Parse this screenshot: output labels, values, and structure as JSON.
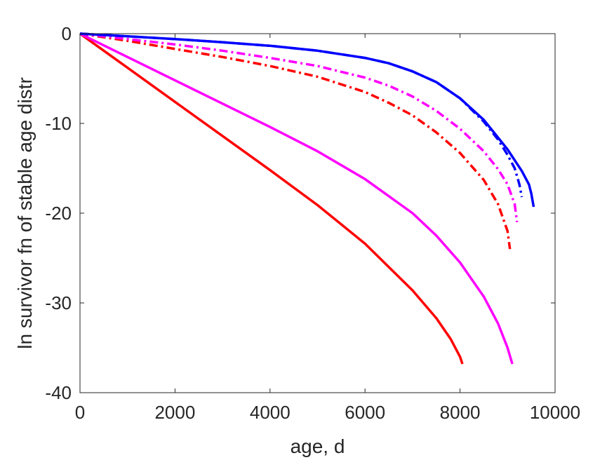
{
  "chart_data": {
    "type": "line",
    "title": "",
    "xlabel": "age, d",
    "ylabel": "ln survivor fn of stable age distr",
    "xlim": [
      0,
      10000
    ],
    "ylim": [
      -40,
      0
    ],
    "xticks": [
      0,
      2000,
      4000,
      6000,
      8000,
      10000
    ],
    "yticks": [
      0,
      -10,
      -20,
      -30,
      -40
    ],
    "xtick_labels": [
      "0",
      "2000",
      "4000",
      "6000",
      "8000",
      "10000"
    ],
    "ytick_labels": [
      "0",
      "-10",
      "-20",
      "-30",
      "-40"
    ],
    "grid": false,
    "legend": "none",
    "series": [
      {
        "color": "#ff0000",
        "style": "solid",
        "x": [
          0,
          1000,
          2000,
          3000,
          4000,
          5000,
          6000,
          7000,
          7500,
          7800,
          8000,
          8050
        ],
        "y": [
          0,
          -3.8,
          -7.6,
          -11.4,
          -15.2,
          -19.1,
          -23.4,
          -28.6,
          -31.7,
          -34.0,
          -36.0,
          -36.8
        ]
      },
      {
        "color": "#ff00ff",
        "style": "solid",
        "x": [
          0,
          1000,
          2000,
          3000,
          4000,
          5000,
          6000,
          7000,
          7500,
          8000,
          8500,
          8800,
          9000,
          9100
        ],
        "y": [
          0,
          -2.6,
          -5.2,
          -7.8,
          -10.4,
          -13.1,
          -16.2,
          -20.0,
          -22.5,
          -25.5,
          -29.3,
          -32.3,
          -35.0,
          -36.8
        ]
      },
      {
        "color": "#ff0000",
        "style": "dashdot",
        "x": [
          0,
          1000,
          2000,
          3000,
          4000,
          5000,
          6000,
          6500,
          7000,
          7500,
          8000,
          8500,
          8800,
          9000,
          9050
        ],
        "y": [
          0,
          -0.8,
          -1.7,
          -2.6,
          -3.6,
          -4.8,
          -6.5,
          -7.7,
          -9.1,
          -11.0,
          -13.3,
          -16.3,
          -19.0,
          -22.0,
          -24.0
        ]
      },
      {
        "color": "#ff00ff",
        "style": "dashdot",
        "x": [
          0,
          1000,
          2000,
          3000,
          4000,
          5000,
          6000,
          6500,
          7000,
          7500,
          8000,
          8500,
          8800,
          9000,
          9150,
          9200
        ],
        "y": [
          0,
          -0.6,
          -1.2,
          -1.9,
          -2.7,
          -3.6,
          -4.9,
          -5.8,
          -7.0,
          -8.6,
          -10.6,
          -13.1,
          -15.1,
          -16.8,
          -19.0,
          -21.0
        ]
      },
      {
        "color": "#0000ff",
        "style": "dashdot",
        "x": [
          0,
          1000,
          2000,
          3000,
          4000,
          5000,
          6000,
          6500,
          7000,
          7500,
          8000,
          8500,
          8800,
          9000,
          9150,
          9250,
          9300
        ],
        "y": [
          0,
          -0.3,
          -0.6,
          -0.95,
          -1.35,
          -1.9,
          -2.7,
          -3.3,
          -4.2,
          -5.4,
          -7.2,
          -9.8,
          -11.8,
          -13.5,
          -15.0,
          -16.8,
          -18.2
        ]
      },
      {
        "color": "#0000ff",
        "style": "solid",
        "x": [
          0,
          1000,
          2000,
          3000,
          4000,
          5000,
          6000,
          6500,
          7000,
          7500,
          8000,
          8500,
          9000,
          9300,
          9450,
          9500,
          9550
        ],
        "y": [
          0,
          -0.3,
          -0.6,
          -0.95,
          -1.35,
          -1.9,
          -2.7,
          -3.3,
          -4.2,
          -5.4,
          -7.2,
          -9.6,
          -12.9,
          -15.3,
          -16.8,
          -17.8,
          -19.3
        ]
      }
    ]
  }
}
